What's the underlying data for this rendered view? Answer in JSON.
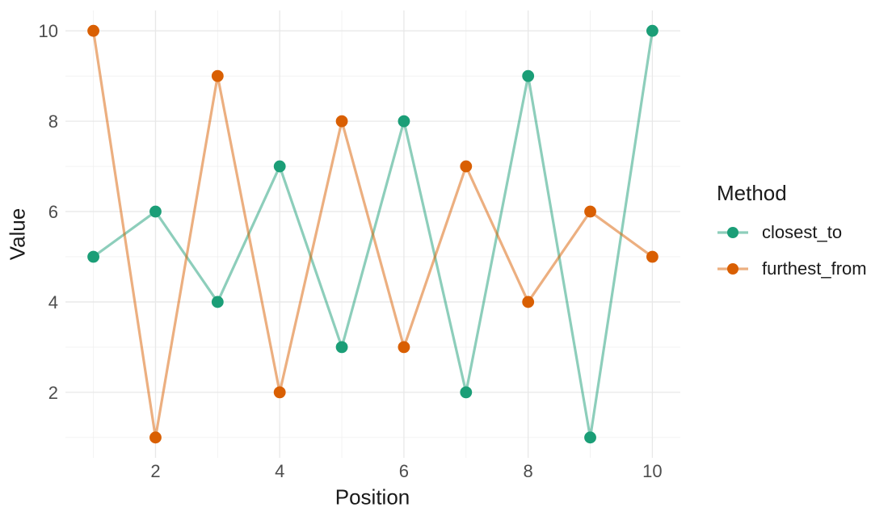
{
  "chart_data": {
    "type": "line",
    "title": "",
    "xlabel": "Position",
    "ylabel": "Value",
    "legend_title": "Method",
    "legend_position": "right",
    "x": [
      1,
      2,
      3,
      4,
      5,
      6,
      7,
      8,
      9,
      10
    ],
    "series": [
      {
        "name": "closest_to",
        "color": "#1b9e77",
        "values": [
          5,
          6,
          4,
          7,
          3,
          8,
          2,
          9,
          1,
          10
        ]
      },
      {
        "name": "furthest_from",
        "color": "#d95f02",
        "values": [
          10,
          1,
          9,
          2,
          8,
          3,
          7,
          4,
          6,
          5
        ]
      }
    ],
    "x_ticks": [
      2,
      4,
      6,
      8,
      10
    ],
    "y_ticks": [
      2,
      4,
      6,
      8,
      10
    ],
    "xlim": [
      0.55,
      10.45
    ],
    "ylim": [
      0.55,
      10.45
    ],
    "grid": "major+minor, no axis lines (minimal theme)"
  },
  "style": {
    "background": "#ffffff",
    "grid_major_color": "#e8e8e8",
    "grid_minor_color": "#f1f1f1",
    "tick_label_color": "#4d4d4d",
    "axis_title_color": "#1a1a1a",
    "line_opacity": 0.5
  }
}
